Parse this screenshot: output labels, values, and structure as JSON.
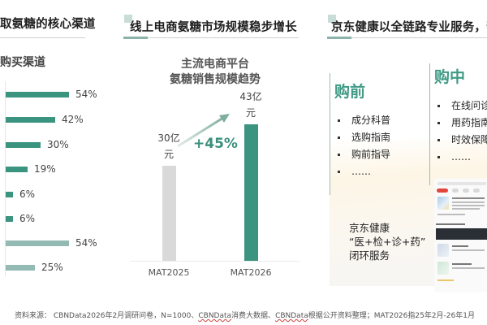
{
  "sections": {
    "left": {
      "title": "取氨糖的核心渠道",
      "subtitle": "购买渠道"
    },
    "middle": {
      "title": "线上电商氨糖市场规模稳步增长",
      "chart_title_line1": "主流电商平台",
      "chart_title_line2": "氨糖销售规模趋势",
      "growth_label": "+45%"
    },
    "right": {
      "title": "京东健康以全链路专业服务，帮",
      "stages": [
        {
          "head": "购前",
          "items": [
            "成分科普",
            "选购指南",
            "购前指导",
            "……"
          ]
        },
        {
          "head": "购中",
          "items": [
            "在线问诊",
            "用药指南",
            "时效保障",
            "……"
          ]
        }
      ],
      "closed_loop": [
        "京东健康",
        "“医+检+诊+药”",
        "闭环服务"
      ]
    }
  },
  "colors": {
    "accent_green": "#3a9480",
    "light_teal": "#94bbb3",
    "gray_bar": "#d9d9d9",
    "heading_green": "#3f9a86"
  },
  "chart_data": [
    {
      "type": "bar",
      "orientation": "horizontal",
      "title": "购买渠道",
      "categories": [
        "",
        "",
        "",
        "",
        "",
        "",
        "",
        ""
      ],
      "values": [
        54,
        42,
        30,
        19,
        6,
        6,
        54,
        25
      ],
      "value_labels": [
        "54%",
        "42%",
        "30%",
        "19%",
        "6%",
        "6%",
        "54%",
        "25%"
      ],
      "series_colors": [
        "#3a9480",
        "#3a9480",
        "#3a9480",
        "#3a9480",
        "#3a9480",
        "#3a9480",
        "#94bbb3",
        "#94bbb3"
      ],
      "xlim": [
        0,
        60
      ],
      "grid": false
    },
    {
      "type": "bar",
      "title": "主流电商平台 氨糖销售规模趋势",
      "categories": [
        "MAT2025",
        "MAT2026"
      ],
      "values": [
        30,
        43
      ],
      "value_labels": [
        "30亿元",
        "43亿元"
      ],
      "unit": "亿元",
      "annotation": "+45%",
      "series_colors": [
        "#d9d9d9",
        "#3a9480"
      ],
      "ylim": [
        0,
        50
      ],
      "grid": false
    }
  ],
  "footer": {
    "prefix": "资料来源： CBNData2026年2月调研问卷，N=1000、",
    "src2": "CBNData",
    "mid": "消费大数据、",
    "src3": "CBNData",
    "suffix": "根据公开资料整理；MAT2026指25年2月-26年1月"
  }
}
